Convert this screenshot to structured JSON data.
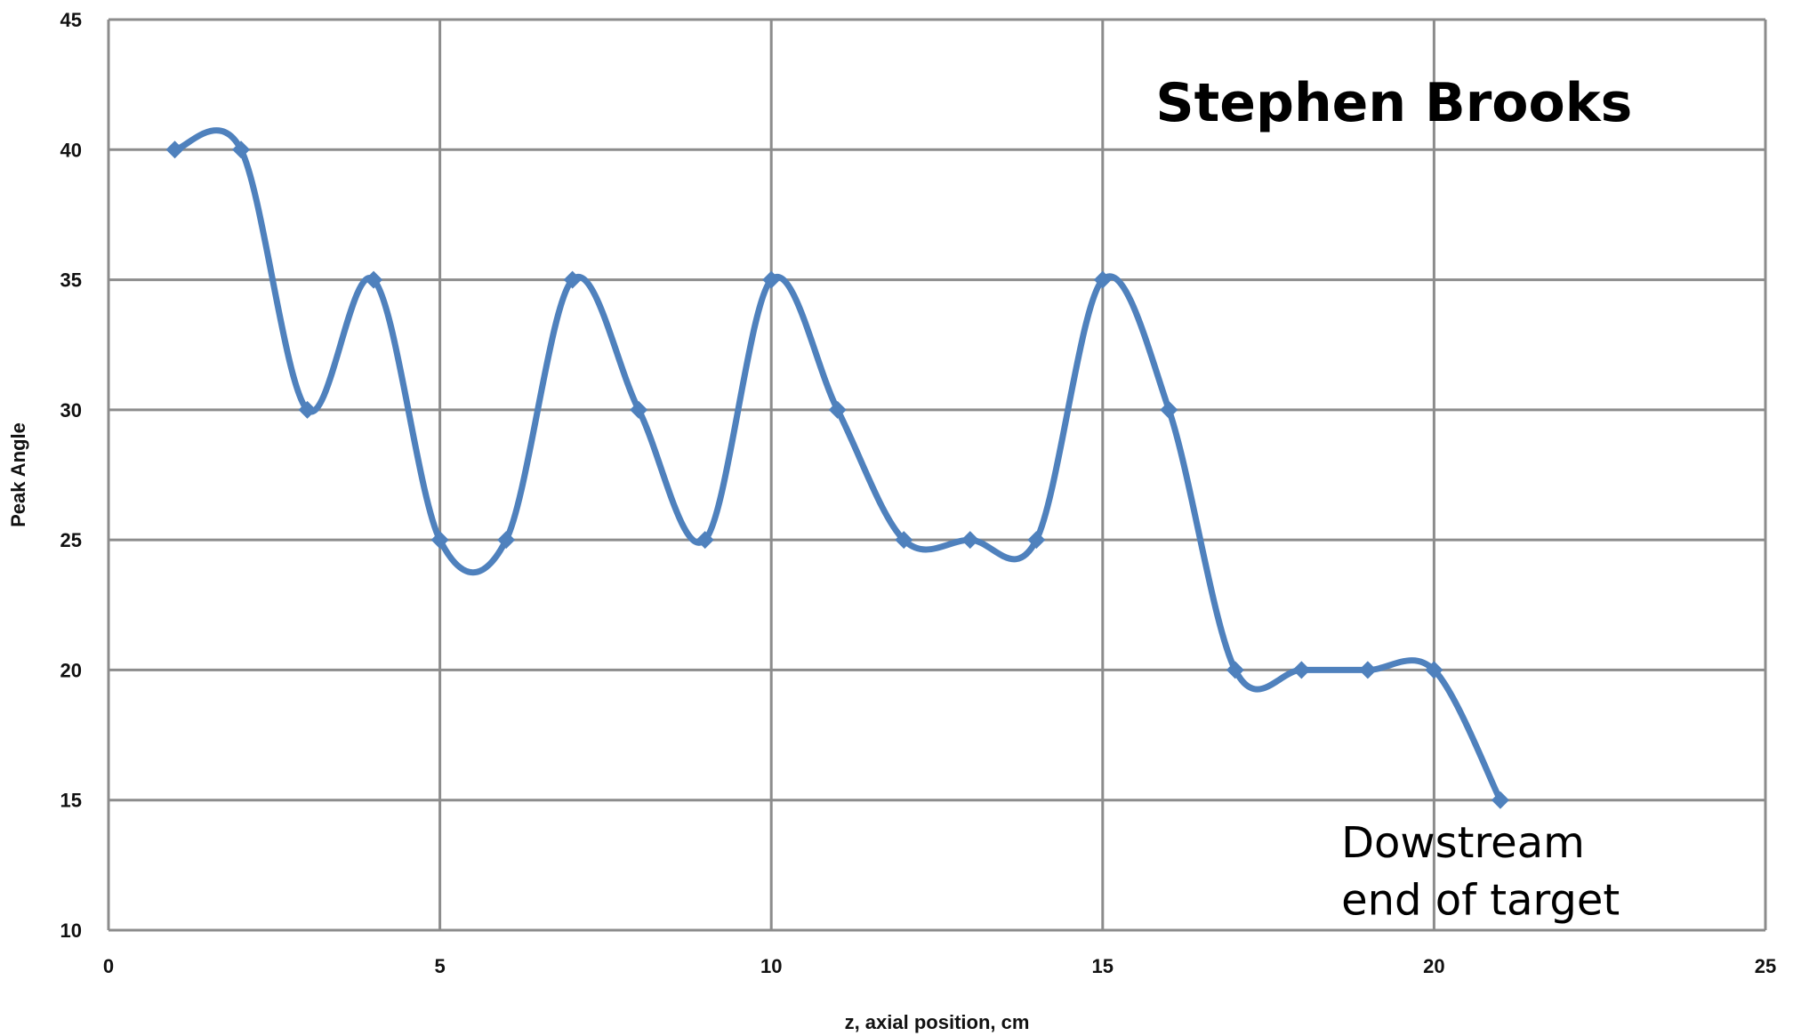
{
  "chart_data": {
    "type": "line",
    "smooth": true,
    "xlabel": "z, axial position,  cm",
    "ylabel": "Peak Angle",
    "xlim": [
      0,
      25
    ],
    "ylim": [
      10,
      45
    ],
    "x_ticks": [
      0,
      5,
      10,
      15,
      20,
      25
    ],
    "y_ticks": [
      10,
      15,
      20,
      25,
      30,
      35,
      40,
      45
    ],
    "x_tick_labels": [
      "0",
      "5",
      "10",
      "15",
      "20",
      "25"
    ],
    "y_tick_labels": [
      "10",
      "15",
      "20",
      "25",
      "30",
      "35",
      "40",
      "45"
    ],
    "grid": true,
    "legend": "none",
    "series": [
      {
        "color": "#4f81bd",
        "marker": "diamond",
        "x": [
          1,
          2,
          3,
          4,
          5,
          6,
          7,
          8,
          9,
          10,
          11,
          12,
          13,
          14,
          15,
          16,
          17,
          18,
          19,
          20,
          21
        ],
        "y": [
          40,
          40,
          30,
          35,
          25,
          25,
          35,
          30,
          25,
          35,
          30,
          25,
          25,
          25,
          35,
          30,
          20,
          20,
          20,
          20,
          15
        ]
      }
    ],
    "annotations": [
      {
        "text": "Stephen Brooks",
        "x": 15.8,
        "y": 41.1,
        "style": "big"
      },
      {
        "text": "Dowstream",
        "x": 18.6,
        "y": 12.8,
        "style": "normal"
      },
      {
        "text": "end of target",
        "x": 18.6,
        "y": 10.6,
        "style": "normal"
      }
    ]
  }
}
